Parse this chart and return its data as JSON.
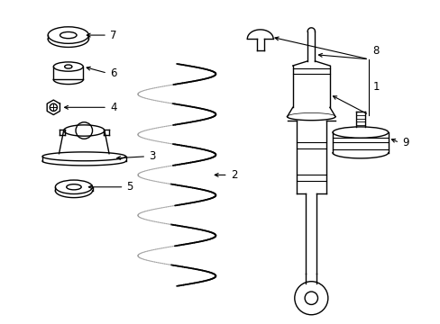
{
  "bg_color": "#ffffff",
  "line_color": "#000000",
  "line_width": 1.0,
  "label_fontsize": 8.5,
  "figsize": [
    4.89,
    3.6
  ],
  "dpi": 100
}
